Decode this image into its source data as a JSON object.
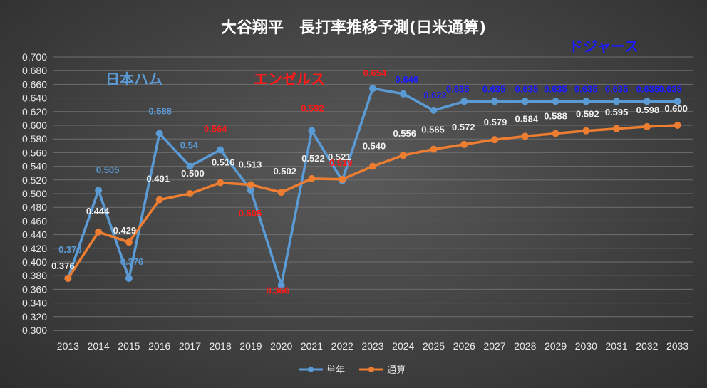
{
  "chart_data": {
    "type": "line",
    "title": "大谷翔平　長打率推移予測(日米通算)",
    "categories": [
      "2013",
      "2014",
      "2015",
      "2016",
      "2017",
      "2018",
      "2019",
      "2020",
      "2021",
      "2022",
      "2023",
      "2024",
      "2025",
      "2026",
      "2027",
      "2028",
      "2029",
      "2030",
      "2031",
      "2032",
      "2033"
    ],
    "ylim": [
      0.3,
      0.7
    ],
    "yticks": [
      "0.300",
      "0.320",
      "0.340",
      "0.360",
      "0.380",
      "0.400",
      "0.420",
      "0.440",
      "0.460",
      "0.480",
      "0.500",
      "0.520",
      "0.540",
      "0.560",
      "0.580",
      "0.600",
      "0.620",
      "0.640",
      "0.660",
      "0.680",
      "0.700"
    ],
    "grid": true,
    "legend_position": "bottom",
    "series": [
      {
        "name": "単年",
        "color": "#5b9bd5",
        "values": [
          0.376,
          0.505,
          0.376,
          0.588,
          0.54,
          0.564,
          0.505,
          0.366,
          0.592,
          0.519,
          0.654,
          0.646,
          0.622,
          0.635,
          0.635,
          0.635,
          0.635,
          0.635,
          0.635,
          0.635,
          0.635
        ],
        "labels": [
          "0.376",
          "0.505",
          "0.376",
          "0.588",
          "0.54",
          "0.564",
          "0.505",
          "0.366",
          "0.592",
          "0.519",
          "0.654",
          "0.646",
          "0.622",
          "0.635",
          "0.635",
          "0.635",
          "0.635",
          "0.635",
          "0.635",
          "0.635",
          "0.635"
        ],
        "label_colors": [
          "#5b9bd5",
          "#5b9bd5",
          "#5b9bd5",
          "#5b9bd5",
          "#5b9bd5",
          "#ff1a1a",
          "#ff1a1a",
          "#ff1a1a",
          "#ff1a1a",
          "#ff1a1a",
          "#ff1a1a",
          "#1a1aff",
          "#1a1aff",
          "#1a1aff",
          "#1a1aff",
          "#1a1aff",
          "#1a1aff",
          "#1a1aff",
          "#1a1aff",
          "#1a1aff",
          "#1a1aff"
        ]
      },
      {
        "name": "通算",
        "color": "#ed7d31",
        "values": [
          0.376,
          0.444,
          0.429,
          0.491,
          0.5,
          0.516,
          0.513,
          0.502,
          0.522,
          0.521,
          0.54,
          0.556,
          0.565,
          0.572,
          0.579,
          0.584,
          0.588,
          0.592,
          0.595,
          0.598,
          0.6
        ],
        "labels": [
          "0.376",
          "0.444",
          "0.429",
          "0.491",
          "0.500",
          "0.516",
          "0.513",
          "0.502",
          "0.522",
          "0.521",
          "0.540",
          "0.556",
          "0.565",
          "0.572",
          "0.579",
          "0.584",
          "0.588",
          "0.592",
          "0.595",
          "0.598",
          "0.600"
        ],
        "label_color": "#f2f2f2"
      }
    ],
    "annotations": [
      {
        "text": "日本ハム",
        "color": "#5b9bd5"
      },
      {
        "text": "エンゼルス",
        "color": "#ff1a1a"
      },
      {
        "text": "ドジャース",
        "color": "#1a1aff"
      }
    ]
  }
}
